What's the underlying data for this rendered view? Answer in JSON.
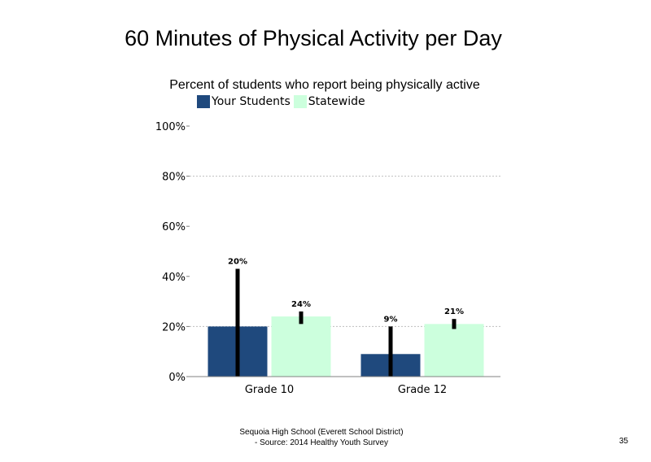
{
  "colors": {
    "your_students": "#1f497d",
    "statewide": "#ccffdd",
    "error_bar": "#000000",
    "grid": "#bfbfbf",
    "axis": "#808080"
  },
  "chart_data": {
    "type": "bar",
    "title": "60 Minutes of Physical Activity per Day",
    "subtitle": "Percent of students  who report being physically active",
    "categories": [
      "Grade 10",
      "Grade 12"
    ],
    "series": [
      {
        "name": "Your Students",
        "values": [
          20,
          9
        ],
        "labels": [
          "20%",
          "9%"
        ],
        "error_high": [
          43,
          20
        ],
        "error_low": [
          0,
          0
        ]
      },
      {
        "name": "Statewide",
        "values": [
          24,
          21
        ],
        "labels": [
          "24%",
          "21%"
        ],
        "error_high": [
          26,
          23
        ],
        "error_low": [
          21,
          19
        ]
      }
    ],
    "y_ticks": [
      "0%",
      "20%",
      "40%",
      "60%",
      "80%",
      "100%"
    ],
    "ylim": [
      0,
      100
    ],
    "gridlines_at": [
      20,
      80
    ],
    "legend_position": "top"
  },
  "footer": {
    "line1": "Sequoia High School (Everett School District)",
    "line2": "- Source: 2014 Healthy  Youth Survey"
  },
  "page_number": "35"
}
